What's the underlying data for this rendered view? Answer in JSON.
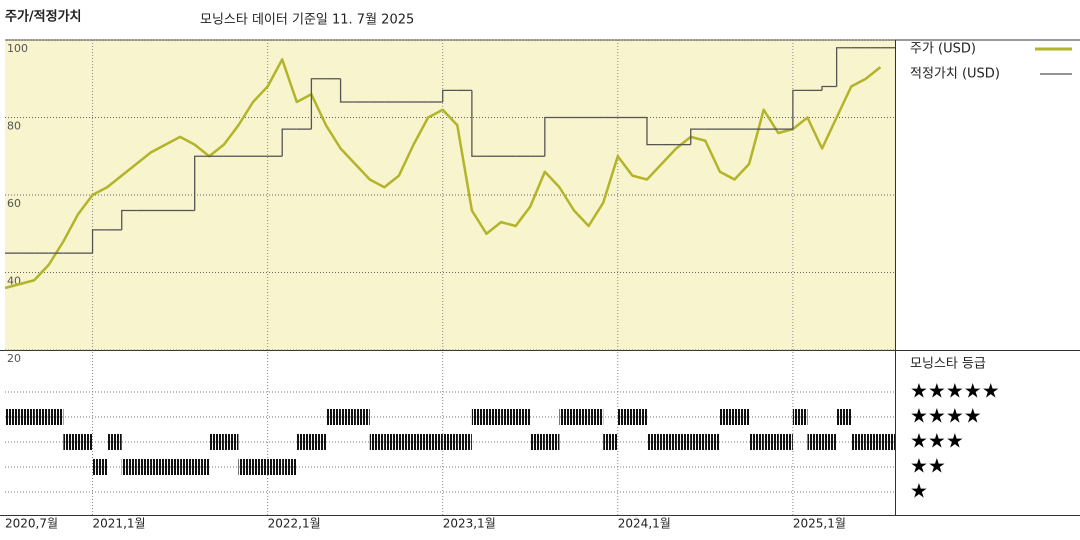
{
  "chart_data": {
    "type": "line",
    "title": "주가/적정가치",
    "subtitle": "모닝스타 데이터 기준일 11. 7월 2025",
    "x": [
      "2020-07",
      "2020-08",
      "2020-09",
      "2020-10",
      "2020-11",
      "2020-12",
      "2021-01",
      "2021-02",
      "2021-03",
      "2021-04",
      "2021-05",
      "2021-06",
      "2021-07",
      "2021-08",
      "2021-09",
      "2021-10",
      "2021-11",
      "2021-12",
      "2022-01",
      "2022-02",
      "2022-03",
      "2022-04",
      "2022-05",
      "2022-06",
      "2022-07",
      "2022-08",
      "2022-09",
      "2022-10",
      "2022-11",
      "2022-12",
      "2023-01",
      "2023-02",
      "2023-03",
      "2023-04",
      "2023-05",
      "2023-06",
      "2023-07",
      "2023-08",
      "2023-09",
      "2023-10",
      "2023-11",
      "2023-12",
      "2024-01",
      "2024-02",
      "2024-03",
      "2024-04",
      "2024-05",
      "2024-06",
      "2024-07",
      "2024-08",
      "2024-09",
      "2024-10",
      "2024-11",
      "2024-12",
      "2025-01",
      "2025-02",
      "2025-03",
      "2025-04",
      "2025-05",
      "2025-06",
      "2025-07"
    ],
    "xlim": [
      "2020-07",
      "2025-08"
    ],
    "xticks": [
      {
        "value": "2020-07",
        "label": "2020,7월"
      },
      {
        "value": "2021-01",
        "label": "2021,1월"
      },
      {
        "value": "2022-01",
        "label": "2022,1월"
      },
      {
        "value": "2023-01",
        "label": "2023,1월"
      },
      {
        "value": "2024-01",
        "label": "2024,1월"
      },
      {
        "value": "2025-01",
        "label": "2025,1월"
      }
    ],
    "ylim": [
      20,
      100
    ],
    "yticks": [
      20,
      40,
      60,
      80,
      100
    ],
    "grid": true,
    "series": [
      {
        "name": "주가 (USD)",
        "color": "#b2b42a",
        "values": [
          36,
          37,
          38,
          42,
          48,
          55,
          60,
          62,
          65,
          68,
          71,
          73,
          75,
          73,
          70,
          73,
          78,
          84,
          88,
          95,
          84,
          86,
          78,
          72,
          68,
          64,
          62,
          65,
          73,
          80,
          82,
          78,
          56,
          50,
          53,
          52,
          57,
          66,
          62,
          56,
          52,
          58,
          70,
          65,
          64,
          68,
          72,
          75,
          74,
          66,
          64,
          68,
          82,
          76,
          77,
          80,
          72,
          80,
          88,
          90,
          93
        ]
      },
      {
        "name": "적정가치 (USD)",
        "color": "#555555",
        "step": true,
        "values": [
          45,
          45,
          45,
          45,
          45,
          45,
          51,
          51,
          56,
          56,
          56,
          56,
          56,
          70,
          70,
          70,
          70,
          70,
          70,
          77,
          77,
          90,
          90,
          84,
          84,
          84,
          84,
          84,
          84,
          84,
          87,
          87,
          70,
          70,
          70,
          70,
          70,
          80,
          80,
          80,
          80,
          80,
          80,
          80,
          73,
          73,
          73,
          77,
          77,
          77,
          77,
          77,
          77,
          77,
          87,
          87,
          88,
          98,
          98,
          98,
          98
        ]
      }
    ],
    "rating": {
      "title": "모닝스타 등급",
      "levels": [
        5,
        4,
        3,
        2,
        1
      ],
      "level_labels": [
        "★★★★★",
        "★★★★",
        "★★★",
        "★★",
        "★"
      ],
      "values": [
        4,
        4,
        4,
        4,
        3,
        3,
        2,
        3,
        2,
        2,
        2,
        2,
        2,
        2,
        3,
        3,
        2,
        2,
        2,
        2,
        3,
        3,
        4,
        4,
        4,
        3,
        3,
        3,
        3,
        3,
        3,
        3,
        4,
        4,
        4,
        4,
        3,
        3,
        4,
        4,
        4,
        3,
        4,
        4,
        3,
        3,
        3,
        3,
        3,
        4,
        4,
        3,
        3,
        3,
        4,
        3,
        3,
        4,
        3,
        3,
        3
      ]
    }
  }
}
